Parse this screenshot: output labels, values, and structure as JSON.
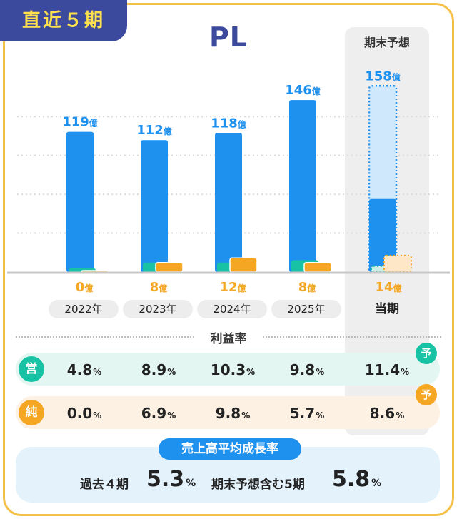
{
  "badge": "直近５期",
  "title": "PL",
  "forecast_label": "期末予想",
  "colors": {
    "revenue": "#1e90ee",
    "operating": "#18c2a4",
    "net": "#f5a623",
    "revenue_forecast": "#cfe8fb",
    "badge_bg": "#3b4a9c",
    "badge_text": "#ffe14d",
    "frame": "#f5c04a"
  },
  "chart_data": {
    "type": "bar",
    "categories": [
      "2022年",
      "2023年",
      "2024年",
      "2025年",
      "当期"
    ],
    "series": [
      {
        "values": [
          119,
          112,
          118,
          146,
          158
        ]
      },
      {
        "values": [
          3,
          8,
          8,
          10,
          5
        ]
      },
      {
        "values": [
          0,
          8,
          12,
          8,
          14
        ]
      }
    ],
    "forecast_index": 4,
    "revenue_labels": [
      "119",
      "112",
      "118",
      "146",
      "158"
    ],
    "net_labels": [
      "0",
      "8",
      "12",
      "8",
      "14"
    ],
    "unit": "億",
    "ylim": [
      0,
      175
    ],
    "grid": true
  },
  "margin_title": "利益率",
  "margins": {
    "op_label": "営",
    "net_label": "純",
    "forecast_mark": "予",
    "op_values": [
      "4.8",
      "8.9",
      "10.3",
      "9.8",
      "11.4"
    ],
    "net_values": [
      "0.0",
      "6.9",
      "9.8",
      "5.7",
      "8.6"
    ],
    "unit": "%"
  },
  "growth": {
    "title": "売上高平均成長率",
    "past_label": "過去４期",
    "past_value": "5.3",
    "incl_label": "期末予想含む5期",
    "incl_value": "5.8",
    "unit": "%"
  }
}
